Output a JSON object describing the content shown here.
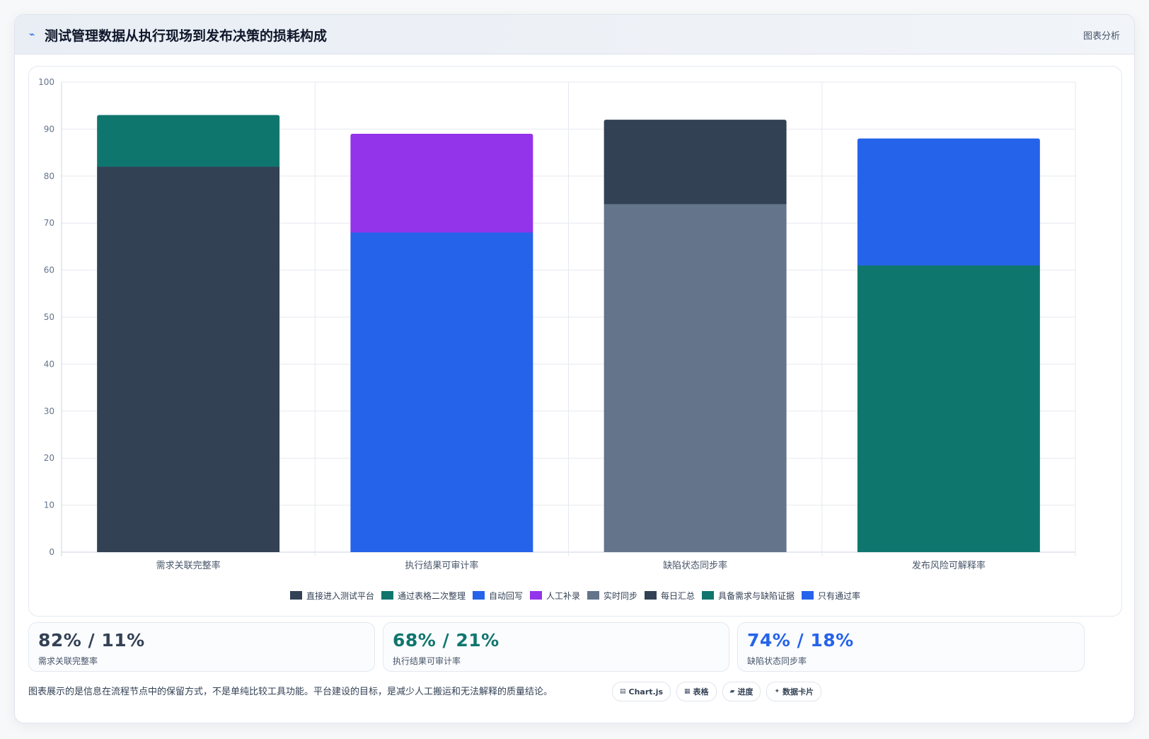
{
  "header": {
    "icon": "pulse-icon",
    "title": "测试管理数据从执行现场到发布决策的损耗构成",
    "tag": "图表分析"
  },
  "chart_data": {
    "type": "bar",
    "stacked": true,
    "categories": [
      "需求关联完整率",
      "执行结果可审计率",
      "缺陷状态同步率",
      "发布风险可解释率"
    ],
    "ylim": [
      0,
      100
    ],
    "yticks": [
      0,
      10,
      20,
      30,
      40,
      50,
      60,
      70,
      80,
      90,
      100
    ],
    "grid": true,
    "legend_position": "bottom",
    "series": [
      {
        "name": "直接进入测试平台",
        "color": "#334155",
        "values": [
          82,
          0,
          0,
          0
        ]
      },
      {
        "name": "通过表格二次整理",
        "color": "#0f766e",
        "values": [
          11,
          0,
          0,
          0
        ]
      },
      {
        "name": "自动回写",
        "color": "#2563eb",
        "values": [
          0,
          68,
          0,
          0
        ]
      },
      {
        "name": "人工补录",
        "color": "#9333ea",
        "values": [
          0,
          21,
          0,
          0
        ]
      },
      {
        "name": "实时同步",
        "color": "#64748b",
        "values": [
          0,
          0,
          74,
          0
        ]
      },
      {
        "name": "每日汇总",
        "color": "#334155",
        "values": [
          0,
          0,
          18,
          0
        ]
      },
      {
        "name": "具备需求与缺陷证据",
        "color": "#0f766e",
        "values": [
          0,
          0,
          0,
          61
        ]
      },
      {
        "name": "只有通过率",
        "color": "#2563eb",
        "values": [
          0,
          0,
          0,
          27
        ]
      }
    ]
  },
  "kpis": [
    {
      "value": "82% / 11%",
      "label": "需求关联完整率",
      "color": "#334155"
    },
    {
      "value": "68% / 21%",
      "label": "执行结果可审计率",
      "color": "#0f766e"
    },
    {
      "value": "74% / 18%",
      "label": "缺陷状态同步率",
      "color": "#2563eb"
    }
  ],
  "footnote": "图表展示的是信息在流程节点中的保留方式，不是单纯比较工具功能。平台建设的目标，是减少人工搬运和无法解释的质量结论。",
  "chips": [
    {
      "icon": "chart-icon",
      "glyph": "▤",
      "label": "Chart.js"
    },
    {
      "icon": "table-icon",
      "glyph": "▦",
      "label": "表格"
    },
    {
      "icon": "progress-icon",
      "glyph": "▰",
      "label": "进度"
    },
    {
      "icon": "card-icon",
      "glyph": "✦",
      "label": "数据卡片"
    }
  ]
}
